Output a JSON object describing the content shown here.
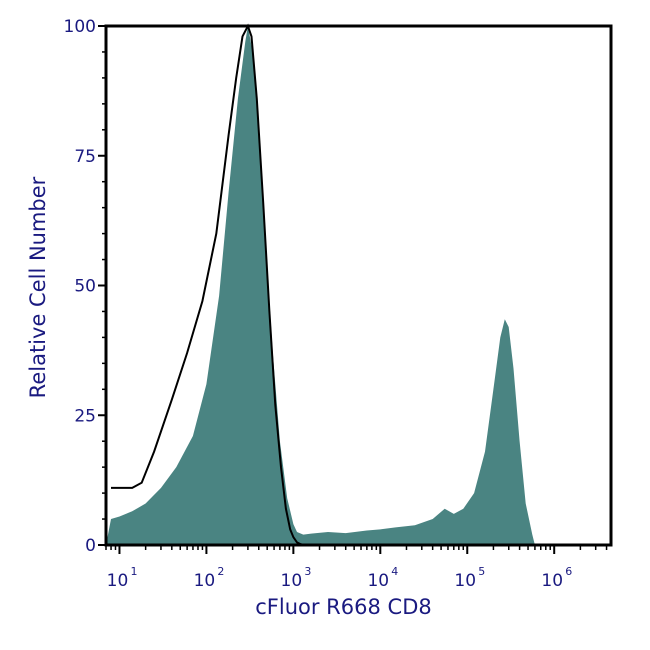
{
  "chart_data": {
    "type": "area",
    "title": "",
    "xlabel": "cFluor R668 CD8",
    "ylabel": "Relative Cell Number",
    "x_scale": "log",
    "xlim": [
      7,
      4500000
    ],
    "ylim": [
      0,
      100
    ],
    "grid": false,
    "legend": "none",
    "y_ticks": [
      "0",
      "25",
      "50",
      "75",
      "100"
    ],
    "x_ticks": [
      {
        "base": "10",
        "exp": "1"
      },
      {
        "base": "10",
        "exp": "2"
      },
      {
        "base": "10",
        "exp": "3"
      },
      {
        "base": "10",
        "exp": "4"
      },
      {
        "base": "10",
        "exp": "5"
      },
      {
        "base": "10",
        "exp": "6"
      }
    ],
    "series": [
      {
        "kind": "filled",
        "color": "#4a8482",
        "x": [
          8,
          10,
          14,
          20,
          30,
          45,
          70,
          100,
          140,
          180,
          230,
          280,
          300,
          340,
          400,
          480,
          580,
          700,
          850,
          1000,
          1100,
          1300,
          1600,
          2500,
          4000,
          7000,
          10000,
          15000,
          25000,
          40000,
          55000,
          70000,
          90000,
          120000,
          160000,
          200000,
          240000,
          270000,
          300000,
          340000,
          400000,
          470000,
          560000,
          600000
        ],
        "y": [
          5,
          5.5,
          6.5,
          8,
          11,
          15,
          21,
          31,
          48,
          68,
          86,
          97,
          100,
          95,
          81,
          58,
          37,
          20,
          9,
          4,
          2.5,
          2,
          2.2,
          2.5,
          2.3,
          2.8,
          3,
          3.4,
          3.8,
          5,
          7,
          6,
          7,
          10,
          18,
          30,
          40,
          43.5,
          42,
          34,
          20,
          8,
          2,
          0
        ]
      },
      {
        "kind": "outline",
        "color": "#000000",
        "x": [
          8,
          14,
          18,
          25,
          40,
          60,
          90,
          130,
          180,
          220,
          260,
          300,
          330,
          380,
          450,
          530,
          620,
          720,
          820,
          920,
          1000,
          1100,
          1200,
          1300
        ],
        "y": [
          11,
          11,
          12,
          18,
          28,
          37,
          47,
          60,
          79,
          90,
          98,
          100,
          98,
          86,
          66,
          45,
          27,
          15,
          7,
          3,
          1.5,
          0.5,
          0.2,
          0
        ]
      }
    ]
  }
}
